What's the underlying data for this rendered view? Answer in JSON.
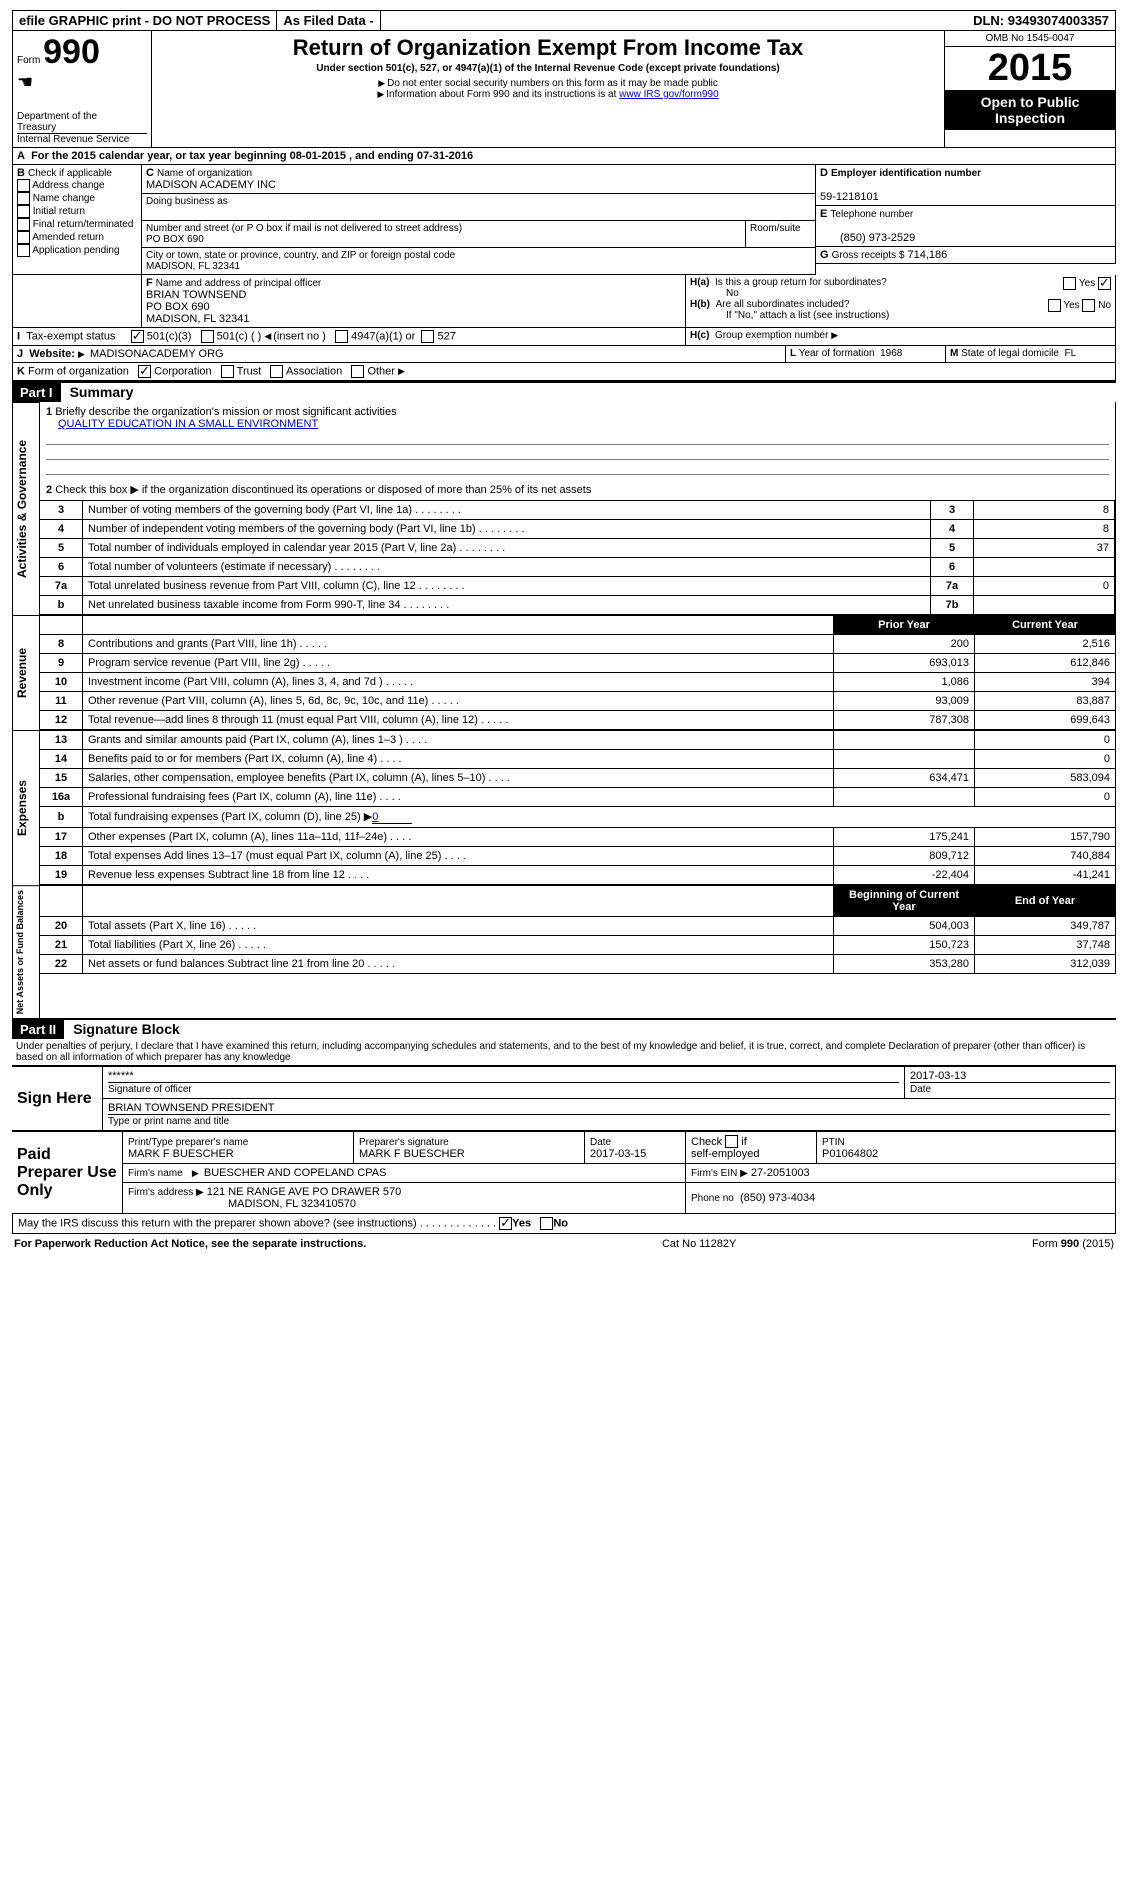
{
  "topbar": {
    "efile": "efile GRAPHIC print - DO NOT PROCESS",
    "asfiled": "As Filed Data -",
    "dln_label": "DLN:",
    "dln": "93493074003357"
  },
  "header": {
    "form_word": "Form",
    "form_no": "990",
    "dept1": "Department of the",
    "dept2": "Treasury",
    "dept3": "Internal Revenue Service",
    "title": "Return of Organization Exempt From Income Tax",
    "sub1": "Under section 501(c), 527, or 4947(a)(1) of the Internal Revenue Code (except private foundations)",
    "sub2": "Do not enter social security numbers on this form as it may be made public",
    "sub3": "Information about Form 990 and its instructions is at",
    "sub3_link": "www IRS gov/form990",
    "omb": "OMB No 1545-0047",
    "year": "2015",
    "inspect": "Open to Public Inspection"
  },
  "a_line": "For the 2015 calendar year, or tax year beginning 08-01-2015      , and ending 07-31-2016",
  "b": {
    "label": "Check if applicable",
    "items": [
      "Address change",
      "Name change",
      "Initial return",
      "Final return/terminated",
      "Amended return",
      "Application pending"
    ]
  },
  "c": {
    "name_label": "Name of organization",
    "name": "MADISON ACADEMY INC",
    "dba_label": "Doing business as",
    "dba": "",
    "street_label": "Number and street (or P O  box if mail is not delivered to street address)",
    "street": "PO BOX 690",
    "room_label": "Room/suite",
    "city_label": "City or town, state or province, country, and ZIP or foreign postal code",
    "city": "MADISON, FL  32341"
  },
  "d": {
    "label": "Employer identification number",
    "value": "59-1218101"
  },
  "e": {
    "label": "Telephone number",
    "value": "(850) 973-2529"
  },
  "g": {
    "label": "Gross receipts $",
    "value": "714,186"
  },
  "f": {
    "label": "Name and address of principal officer",
    "lines": [
      "BRIAN TOWNSEND",
      "PO BOX 690",
      "MADISON, FL  32341"
    ]
  },
  "h": {
    "a": "Is this a group return for subordinates?",
    "a_no": "No",
    "b": "Are all subordinates included?",
    "b_note": "If \"No,\" attach a list  (see instructions)",
    "c": "Group exemption number"
  },
  "i": {
    "label": "Tax-exempt status",
    "opts": [
      "501(c)(3)",
      "501(c) (  )",
      "(insert no )",
      "4947(a)(1) or",
      "527"
    ]
  },
  "j": {
    "label": "Website:",
    "value": "MADISONACADEMY ORG"
  },
  "k": {
    "label": "Form of organization",
    "opts": [
      "Corporation",
      "Trust",
      "Association",
      "Other"
    ]
  },
  "l": {
    "label": "Year of formation",
    "value": "1968"
  },
  "m": {
    "label": "State of legal domicile",
    "value": "FL"
  },
  "part1": {
    "hdr": "Part I",
    "title": "Summary",
    "q1": "Briefly describe the organization's mission or most significant activities",
    "q1_ans": "QUALITY EDUCATION IN A SMALL ENVIRONMENT",
    "q2": "Check this box ▶        if the organization discontinued its operations or disposed of more than 25% of its net assets",
    "gov_rows": [
      {
        "n": "3",
        "t": "Number of voting members of the governing body (Part VI, line 1a)",
        "id": "3",
        "v": "8"
      },
      {
        "n": "4",
        "t": "Number of independent voting members of the governing body (Part VI, line 1b)",
        "id": "4",
        "v": "8"
      },
      {
        "n": "5",
        "t": "Total number of individuals employed in calendar year 2015 (Part V, line 2a)",
        "id": "5",
        "v": "37"
      },
      {
        "n": "6",
        "t": "Total number of volunteers (estimate if necessary)",
        "id": "6",
        "v": ""
      },
      {
        "n": "7a",
        "t": "Total unrelated business revenue from Part VIII, column (C), line 12",
        "id": "7a",
        "v": "0"
      },
      {
        "n": "b",
        "t": "Net unrelated business taxable income from Form 990-T, line 34",
        "id": "7b",
        "v": ""
      }
    ],
    "cols": {
      "prior": "Prior Year",
      "current": "Current Year"
    },
    "rev_rows": [
      {
        "n": "8",
        "t": "Contributions and grants (Part VIII, line 1h)",
        "p": "200",
        "c": "2,516"
      },
      {
        "n": "9",
        "t": "Program service revenue (Part VIII, line 2g)",
        "p": "693,013",
        "c": "612,846"
      },
      {
        "n": "10",
        "t": "Investment income (Part VIII, column (A), lines 3, 4, and 7d )",
        "p": "1,086",
        "c": "394"
      },
      {
        "n": "11",
        "t": "Other revenue (Part VIII, column (A), lines 5, 6d, 8c, 9c, 10c, and 11e)",
        "p": "93,009",
        "c": "83,887"
      },
      {
        "n": "12",
        "t": "Total revenue—add lines 8 through 11 (must equal Part VIII, column (A), line 12)",
        "p": "787,308",
        "c": "699,643"
      }
    ],
    "exp_rows": [
      {
        "n": "13",
        "t": "Grants and similar amounts paid (Part IX, column (A), lines 1–3 )",
        "p": "",
        "c": "0"
      },
      {
        "n": "14",
        "t": "Benefits paid to or for members (Part IX, column (A), line 4)",
        "p": "",
        "c": "0"
      },
      {
        "n": "15",
        "t": "Salaries, other compensation, employee benefits (Part IX, column (A), lines 5–10)",
        "p": "634,471",
        "c": "583,094"
      },
      {
        "n": "16a",
        "t": "Professional fundraising fees (Part IX, column (A), line 11e)",
        "p": "",
        "c": "0"
      },
      {
        "n": "b",
        "t": "Total fundraising expenses (Part IX, column (D), line 25) ▶",
        "p": "—",
        "c": "—",
        "extra": "0"
      },
      {
        "n": "17",
        "t": "Other expenses (Part IX, column (A), lines 11a–11d, 11f–24e)",
        "p": "175,241",
        "c": "157,790"
      },
      {
        "n": "18",
        "t": "Total expenses  Add lines 13–17 (must equal Part IX, column (A), line 25)",
        "p": "809,712",
        "c": "740,884"
      },
      {
        "n": "19",
        "t": "Revenue less expenses  Subtract line 18 from line 12",
        "p": "-22,404",
        "c": "-41,241"
      }
    ],
    "na_cols": {
      "begin": "Beginning of Current Year",
      "end": "End of Year"
    },
    "na_rows": [
      {
        "n": "20",
        "t": "Total assets (Part X, line 16)",
        "p": "504,003",
        "c": "349,787"
      },
      {
        "n": "21",
        "t": "Total liabilities (Part X, line 26)",
        "p": "150,723",
        "c": "37,748"
      },
      {
        "n": "22",
        "t": "Net assets or fund balances  Subtract line 21 from line 20",
        "p": "353,280",
        "c": "312,039"
      }
    ],
    "vlabels": {
      "gov": "Activities & Governance",
      "rev": "Revenue",
      "exp": "Expenses",
      "na": "Net Assets or Fund Balances"
    }
  },
  "part2": {
    "hdr": "Part II",
    "title": "Signature Block",
    "decl": "Under penalties of perjury, I declare that I have examined this return, including accompanying schedules and statements, and to the best of my knowledge and belief, it is true, correct, and complete  Declaration of preparer (other than officer) is based on all information of which preparer has any knowledge"
  },
  "sign": {
    "here": "Sign Here",
    "stars": "******",
    "sig_label": "Signature of officer",
    "date": "2017-03-13",
    "date_label": "Date",
    "name": "BRIAN TOWNSEND PRESIDENT",
    "name_label": "Type or print name and title"
  },
  "paid": {
    "label": "Paid Preparer Use Only",
    "r1": {
      "a": "Print/Type preparer's name",
      "av": "MARK F BUESCHER",
      "b": "Preparer's signature",
      "bv": "MARK F BUESCHER",
      "c": "Date",
      "cv": "2017-03-15",
      "d": "Check          if self-employed",
      "e": "PTIN",
      "ev": "P01064802"
    },
    "r2": {
      "a": "Firm's name",
      "av": "BUESCHER AND COPELAND CPAS",
      "b": "Firm's EIN ▶",
      "bv": "27-2051003"
    },
    "r3": {
      "a": "Firm's address ▶",
      "av": "121 NE RANGE AVE PO DRAWER 570",
      "av2": "MADISON, FL  323410570",
      "b": "Phone no",
      "bv": "(850) 973-4034"
    }
  },
  "bottom": {
    "q": "May the IRS discuss this return with the preparer shown above? (see instructions)",
    "yes": "Yes",
    "no": "No",
    "notice": "For Paperwork Reduction Act Notice, see the separate instructions.",
    "cat": "Cat No  11282Y",
    "form": "Form",
    "formno": "990",
    "formyr": "(2015)"
  }
}
